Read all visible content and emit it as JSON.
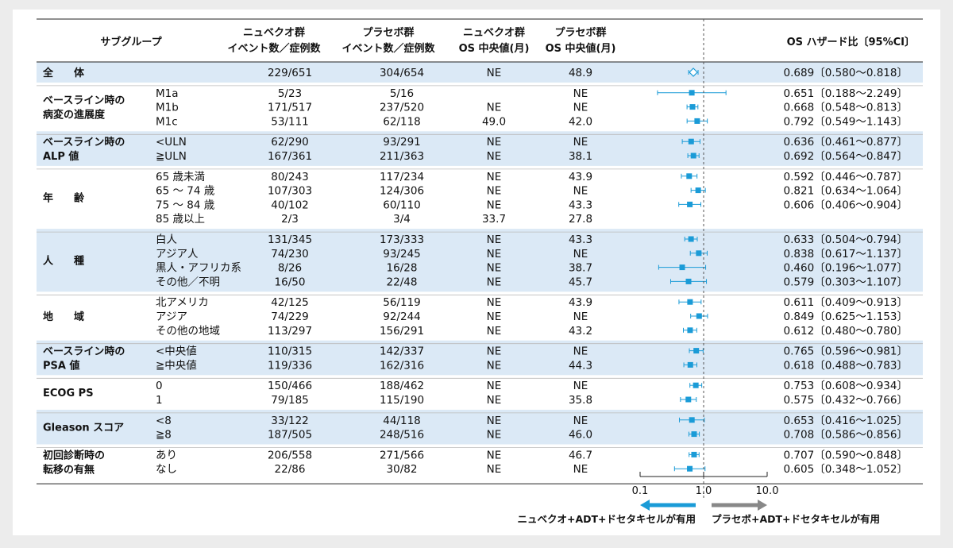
{
  "header": {
    "subgroup": "サブグループ",
    "nub_events": [
      "ニュベクオ群",
      "イベント数／症例数"
    ],
    "pbo_events": [
      "プラセボ群",
      "イベント数／症例数"
    ],
    "nub_median": [
      "ニュベクオ群",
      "OS 中央値(月)"
    ],
    "pbo_median": [
      "プラセボ群",
      "OS 中央値(月)"
    ],
    "hr": "OS ハザード比〔95%CI〕"
  },
  "groups": [
    {
      "label": [
        "全　　体"
      ],
      "shaded": true,
      "rows": 1
    },
    {
      "label": [
        "ベースライン時の",
        "病変の進展度"
      ],
      "shaded": false,
      "rows": 3
    },
    {
      "label": [
        "ベースライン時の",
        "ALP 値"
      ],
      "shaded": true,
      "rows": 2
    },
    {
      "label": [
        "年　　齢"
      ],
      "shaded": false,
      "rows": 4
    },
    {
      "label": [
        "人　　種"
      ],
      "shaded": true,
      "rows": 4
    },
    {
      "label": [
        "地　　域"
      ],
      "shaded": false,
      "rows": 3
    },
    {
      "label": [
        "ベースライン時の",
        "PSA 値"
      ],
      "shaded": true,
      "rows": 2
    },
    {
      "label": [
        "ECOG PS"
      ],
      "shaded": false,
      "rows": 2
    },
    {
      "label": [
        "Gleason スコア"
      ],
      "shaded": true,
      "rows": 2
    },
    {
      "label": [
        "初回診断時の",
        "転移の有無"
      ],
      "shaded": false,
      "rows": 2
    }
  ],
  "axis": {
    "ticks": [
      "0.1",
      "1.0",
      "10.0"
    ],
    "left_label": "ニュベクオ+ADT+ドセタキセルが有用",
    "right_label": "プラセボ+ADT+ドセタキセルが有用"
  },
  "colors": {
    "marker": "#1a9bd7",
    "shade": "#dbe9f6",
    "arrow_left": "#1a9bd7",
    "arrow_right": "#888888"
  },
  "chart_data": {
    "type": "forest",
    "xscale": "log",
    "xlim": [
      0.1,
      10.0
    ],
    "reference_line": 1.0,
    "rows": [
      {
        "group": 0,
        "sub": "",
        "nub": "229/651",
        "pbo": "304/654",
        "nub_med": "NE",
        "pbo_med": "48.9",
        "hr_text": "0.689〔0.580〜0.818〕",
        "hr": 0.689,
        "lo": 0.58,
        "hi": 0.818,
        "overall": true
      },
      {
        "group": 1,
        "sub": "M1a",
        "nub": "5/23",
        "pbo": "5/16",
        "nub_med": "",
        "pbo_med": "NE",
        "hr_text": "0.651〔0.188〜2.249〕",
        "hr": 0.651,
        "lo": 0.188,
        "hi": 2.249
      },
      {
        "group": 1,
        "sub": "M1b",
        "nub": "171/517",
        "pbo": "237/520",
        "nub_med": "NE",
        "pbo_med": "NE",
        "hr_text": "0.668〔0.548〜0.813〕",
        "hr": 0.668,
        "lo": 0.548,
        "hi": 0.813
      },
      {
        "group": 1,
        "sub": "M1c",
        "nub": "53/111",
        "pbo": "62/118",
        "nub_med": "49.0",
        "pbo_med": "42.0",
        "hr_text": "0.792〔0.549〜1.143〕",
        "hr": 0.792,
        "lo": 0.549,
        "hi": 1.143
      },
      {
        "group": 2,
        "sub": "<ULN",
        "nub": "62/290",
        "pbo": "93/291",
        "nub_med": "NE",
        "pbo_med": "NE",
        "hr_text": "0.636〔0.461〜0.877〕",
        "hr": 0.636,
        "lo": 0.461,
        "hi": 0.877
      },
      {
        "group": 2,
        "sub": "≧ULN",
        "nub": "167/361",
        "pbo": "211/363",
        "nub_med": "NE",
        "pbo_med": "38.1",
        "hr_text": "0.692〔0.564〜0.847〕",
        "hr": 0.692,
        "lo": 0.564,
        "hi": 0.847
      },
      {
        "group": 3,
        "sub": "65 歳未満",
        "nub": "80/243",
        "pbo": "117/234",
        "nub_med": "NE",
        "pbo_med": "43.9",
        "hr_text": "0.592〔0.446〜0.787〕",
        "hr": 0.592,
        "lo": 0.446,
        "hi": 0.787
      },
      {
        "group": 3,
        "sub": "65 ～ 74 歳",
        "nub": "107/303",
        "pbo": "124/306",
        "nub_med": "NE",
        "pbo_med": "NE",
        "hr_text": "0.821〔0.634〜1.064〕",
        "hr": 0.821,
        "lo": 0.634,
        "hi": 1.064
      },
      {
        "group": 3,
        "sub": "75 ～ 84 歳",
        "nub": "40/102",
        "pbo": "60/110",
        "nub_med": "NE",
        "pbo_med": "43.3",
        "hr_text": "0.606〔0.406〜0.904〕",
        "hr": 0.606,
        "lo": 0.406,
        "hi": 0.904
      },
      {
        "group": 3,
        "sub": "85 歳以上",
        "nub": "2/3",
        "pbo": "3/4",
        "nub_med": "33.7",
        "pbo_med": "27.8",
        "hr_text": ""
      },
      {
        "group": 4,
        "sub": "白人",
        "nub": "131/345",
        "pbo": "173/333",
        "nub_med": "NE",
        "pbo_med": "43.3",
        "hr_text": "0.633〔0.504〜0.794〕",
        "hr": 0.633,
        "lo": 0.504,
        "hi": 0.794
      },
      {
        "group": 4,
        "sub": "アジア人",
        "nub": "74/230",
        "pbo": "93/245",
        "nub_med": "NE",
        "pbo_med": "NE",
        "hr_text": "0.838〔0.617〜1.137〕",
        "hr": 0.838,
        "lo": 0.617,
        "hi": 1.137
      },
      {
        "group": 4,
        "sub": "黒人・アフリカ系",
        "nub": "8/26",
        "pbo": "16/28",
        "nub_med": "NE",
        "pbo_med": "38.7",
        "hr_text": "0.460〔0.196〜1.077〕",
        "hr": 0.46,
        "lo": 0.196,
        "hi": 1.077
      },
      {
        "group": 4,
        "sub": "その他／不明",
        "nub": "16/50",
        "pbo": "22/48",
        "nub_med": "NE",
        "pbo_med": "45.7",
        "hr_text": "0.579〔0.303〜1.107〕",
        "hr": 0.579,
        "lo": 0.303,
        "hi": 1.107
      },
      {
        "group": 5,
        "sub": "北アメリカ",
        "nub": "42/125",
        "pbo": "56/119",
        "nub_med": "NE",
        "pbo_med": "43.9",
        "hr_text": "0.611〔0.409〜0.913〕",
        "hr": 0.611,
        "lo": 0.409,
        "hi": 0.913
      },
      {
        "group": 5,
        "sub": "アジア",
        "nub": "74/229",
        "pbo": "92/244",
        "nub_med": "NE",
        "pbo_med": "NE",
        "hr_text": "0.849〔0.625〜1.153〕",
        "hr": 0.849,
        "lo": 0.625,
        "hi": 1.153
      },
      {
        "group": 5,
        "sub": "その他の地域",
        "nub": "113/297",
        "pbo": "156/291",
        "nub_med": "NE",
        "pbo_med": "43.2",
        "hr_text": "0.612〔0.480〜0.780〕",
        "hr": 0.612,
        "lo": 0.48,
        "hi": 0.78
      },
      {
        "group": 6,
        "sub": "<中央値",
        "nub": "110/315",
        "pbo": "142/337",
        "nub_med": "NE",
        "pbo_med": "NE",
        "hr_text": "0.765〔0.596〜0.981〕",
        "hr": 0.765,
        "lo": 0.596,
        "hi": 0.981
      },
      {
        "group": 6,
        "sub": "≧中央値",
        "nub": "119/336",
        "pbo": "162/316",
        "nub_med": "NE",
        "pbo_med": "44.3",
        "hr_text": "0.618〔0.488〜0.783〕",
        "hr": 0.618,
        "lo": 0.488,
        "hi": 0.783
      },
      {
        "group": 7,
        "sub": "0",
        "nub": "150/466",
        "pbo": "188/462",
        "nub_med": "NE",
        "pbo_med": "NE",
        "hr_text": "0.753〔0.608〜0.934〕",
        "hr": 0.753,
        "lo": 0.608,
        "hi": 0.934
      },
      {
        "group": 7,
        "sub": "1",
        "nub": "79/185",
        "pbo": "115/190",
        "nub_med": "NE",
        "pbo_med": "35.8",
        "hr_text": "0.575〔0.432〜0.766〕",
        "hr": 0.575,
        "lo": 0.432,
        "hi": 0.766
      },
      {
        "group": 8,
        "sub": "<8",
        "nub": "33/122",
        "pbo": "44/118",
        "nub_med": "NE",
        "pbo_med": "NE",
        "hr_text": "0.653〔0.416〜1.025〕",
        "hr": 0.653,
        "lo": 0.416,
        "hi": 1.025
      },
      {
        "group": 8,
        "sub": "≧8",
        "nub": "187/505",
        "pbo": "248/516",
        "nub_med": "NE",
        "pbo_med": "46.0",
        "hr_text": "0.708〔0.586〜0.856〕",
        "hr": 0.708,
        "lo": 0.586,
        "hi": 0.856
      },
      {
        "group": 9,
        "sub": "あり",
        "nub": "206/558",
        "pbo": "271/566",
        "nub_med": "NE",
        "pbo_med": "46.7",
        "hr_text": "0.707〔0.590〜0.848〕",
        "hr": 0.707,
        "lo": 0.59,
        "hi": 0.848
      },
      {
        "group": 9,
        "sub": "なし",
        "nub": "22/86",
        "pbo": "30/82",
        "nub_med": "NE",
        "pbo_med": "NE",
        "hr_text": "0.605〔0.348〜1.052〕",
        "hr": 0.605,
        "lo": 0.348,
        "hi": 1.052
      }
    ]
  }
}
